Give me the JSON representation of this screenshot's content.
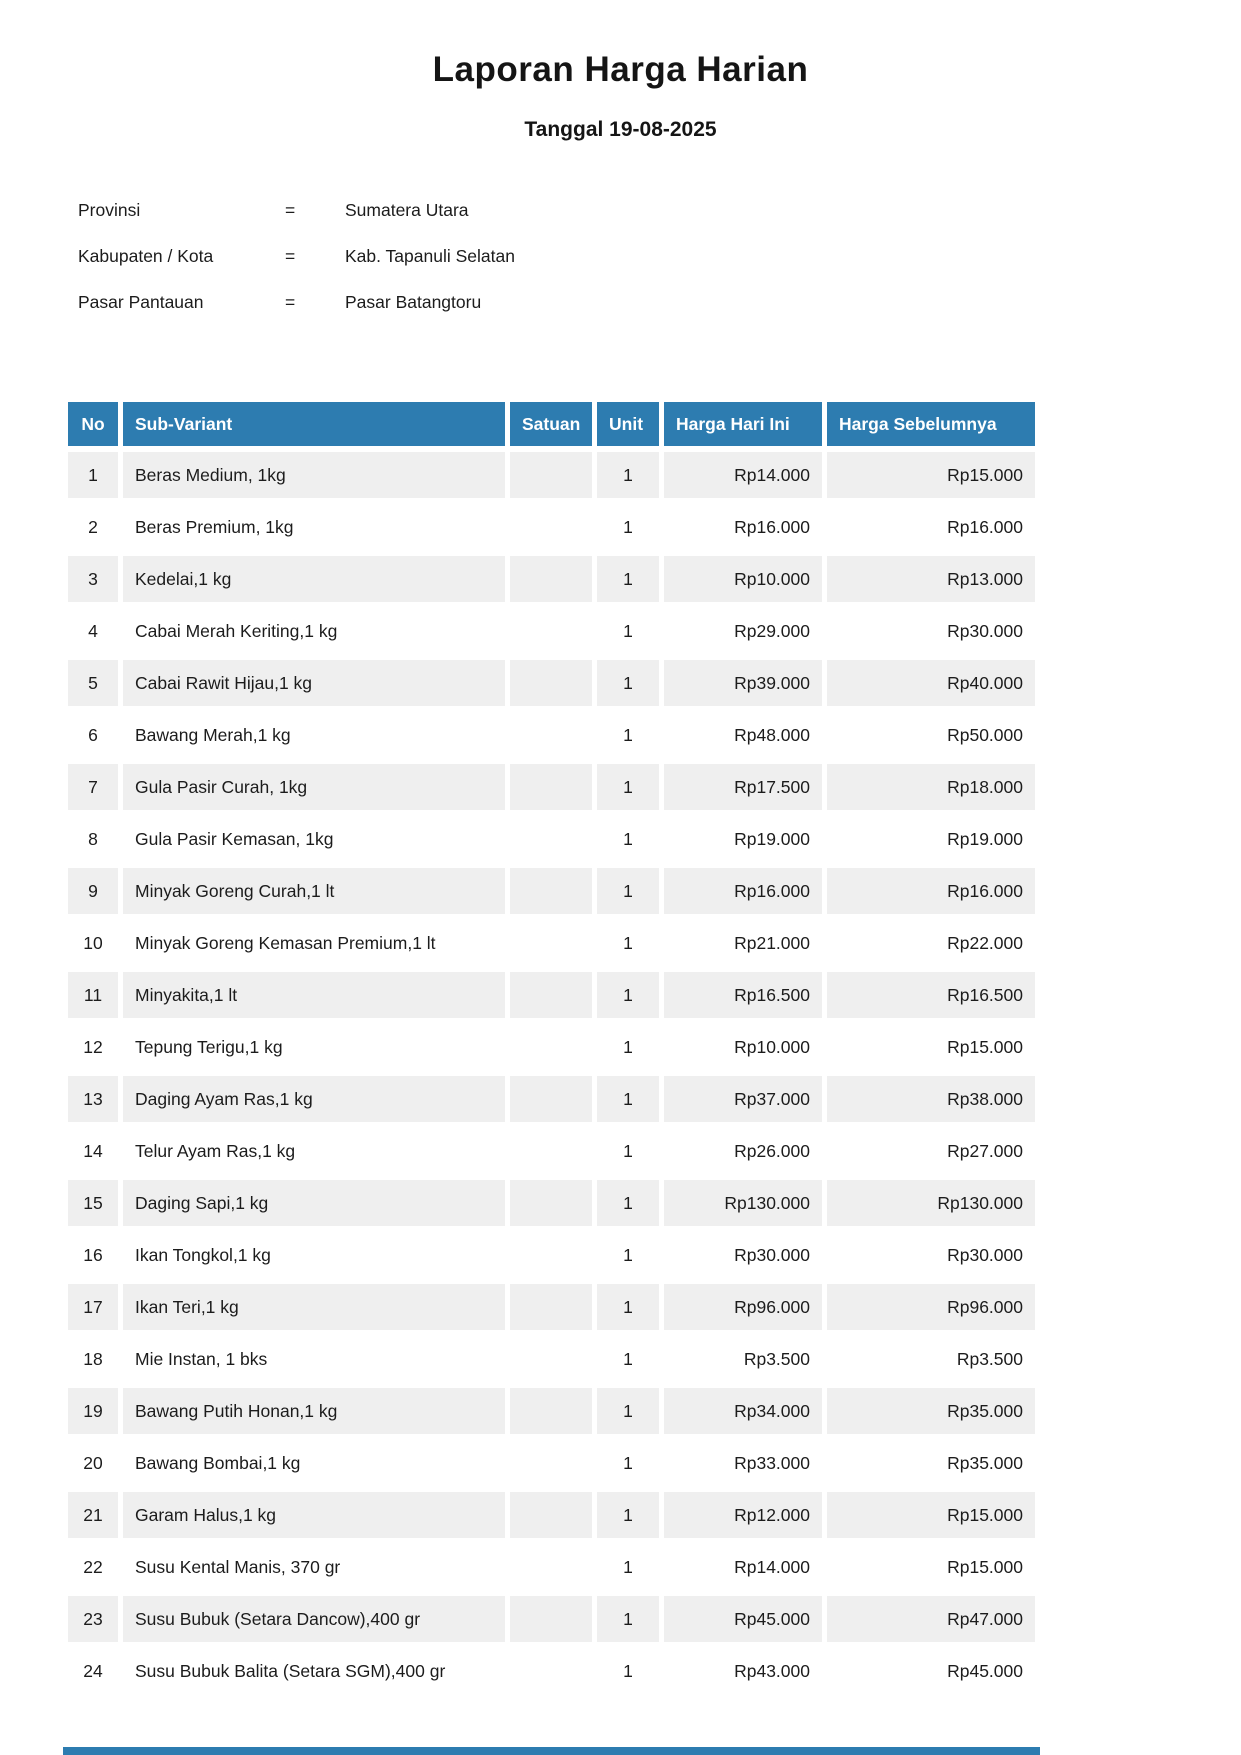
{
  "title": "Laporan Harga Harian",
  "subtitle": "Tanggal 19-08-2025",
  "meta": [
    {
      "label": "Provinsi",
      "eq": "=",
      "value": "Sumatera Utara"
    },
    {
      "label": "Kabupaten / Kota",
      "eq": "=",
      "value": "Kab. Tapanuli Selatan"
    },
    {
      "label": "Pasar Pantauan",
      "eq": "=",
      "value": "Pasar Batangtoru"
    }
  ],
  "table": {
    "headers": [
      "No",
      "Sub-Variant",
      "Satuan",
      "Unit",
      "Harga Hari Ini",
      "Harga Sebelumnya"
    ],
    "rows": [
      {
        "no": "1",
        "sub_variant": "Beras Medium, 1kg",
        "satuan": "",
        "unit": "1",
        "harga_hari_ini": "Rp14.000",
        "harga_sebelumnya": "Rp15.000"
      },
      {
        "no": "2",
        "sub_variant": "Beras Premium, 1kg",
        "satuan": "",
        "unit": "1",
        "harga_hari_ini": "Rp16.000",
        "harga_sebelumnya": "Rp16.000"
      },
      {
        "no": "3",
        "sub_variant": "Kedelai,1 kg",
        "satuan": "",
        "unit": "1",
        "harga_hari_ini": "Rp10.000",
        "harga_sebelumnya": "Rp13.000"
      },
      {
        "no": "4",
        "sub_variant": "Cabai Merah Keriting,1 kg",
        "satuan": "",
        "unit": "1",
        "harga_hari_ini": "Rp29.000",
        "harga_sebelumnya": "Rp30.000"
      },
      {
        "no": "5",
        "sub_variant": "Cabai Rawit Hijau,1 kg",
        "satuan": "",
        "unit": "1",
        "harga_hari_ini": "Rp39.000",
        "harga_sebelumnya": "Rp40.000"
      },
      {
        "no": "6",
        "sub_variant": "Bawang Merah,1 kg",
        "satuan": "",
        "unit": "1",
        "harga_hari_ini": "Rp48.000",
        "harga_sebelumnya": "Rp50.000"
      },
      {
        "no": "7",
        "sub_variant": "Gula Pasir Curah, 1kg",
        "satuan": "",
        "unit": "1",
        "harga_hari_ini": "Rp17.500",
        "harga_sebelumnya": "Rp18.000"
      },
      {
        "no": "8",
        "sub_variant": "Gula Pasir Kemasan, 1kg",
        "satuan": "",
        "unit": "1",
        "harga_hari_ini": "Rp19.000",
        "harga_sebelumnya": "Rp19.000"
      },
      {
        "no": "9",
        "sub_variant": "Minyak Goreng Curah,1 lt",
        "satuan": "",
        "unit": "1",
        "harga_hari_ini": "Rp16.000",
        "harga_sebelumnya": "Rp16.000"
      },
      {
        "no": "10",
        "sub_variant": "Minyak Goreng Kemasan Premium,1 lt",
        "satuan": "",
        "unit": "1",
        "harga_hari_ini": "Rp21.000",
        "harga_sebelumnya": "Rp22.000"
      },
      {
        "no": "11",
        "sub_variant": "Minyakita,1 lt",
        "satuan": "",
        "unit": "1",
        "harga_hari_ini": "Rp16.500",
        "harga_sebelumnya": "Rp16.500"
      },
      {
        "no": "12",
        "sub_variant": "Tepung Terigu,1 kg",
        "satuan": "",
        "unit": "1",
        "harga_hari_ini": "Rp10.000",
        "harga_sebelumnya": "Rp15.000"
      },
      {
        "no": "13",
        "sub_variant": "Daging Ayam Ras,1 kg",
        "satuan": "",
        "unit": "1",
        "harga_hari_ini": "Rp37.000",
        "harga_sebelumnya": "Rp38.000"
      },
      {
        "no": "14",
        "sub_variant": "Telur Ayam Ras,1 kg",
        "satuan": "",
        "unit": "1",
        "harga_hari_ini": "Rp26.000",
        "harga_sebelumnya": "Rp27.000"
      },
      {
        "no": "15",
        "sub_variant": "Daging Sapi,1 kg",
        "satuan": "",
        "unit": "1",
        "harga_hari_ini": "Rp130.000",
        "harga_sebelumnya": "Rp130.000"
      },
      {
        "no": "16",
        "sub_variant": "Ikan Tongkol,1 kg",
        "satuan": "",
        "unit": "1",
        "harga_hari_ini": "Rp30.000",
        "harga_sebelumnya": "Rp30.000"
      },
      {
        "no": "17",
        "sub_variant": "Ikan Teri,1 kg",
        "satuan": "",
        "unit": "1",
        "harga_hari_ini": "Rp96.000",
        "harga_sebelumnya": "Rp96.000"
      },
      {
        "no": "18",
        "sub_variant": "Mie Instan, 1 bks",
        "satuan": "",
        "unit": "1",
        "harga_hari_ini": "Rp3.500",
        "harga_sebelumnya": "Rp3.500"
      },
      {
        "no": "19",
        "sub_variant": "Bawang Putih Honan,1 kg",
        "satuan": "",
        "unit": "1",
        "harga_hari_ini": "Rp34.000",
        "harga_sebelumnya": "Rp35.000"
      },
      {
        "no": "20",
        "sub_variant": "Bawang Bombai,1 kg",
        "satuan": "",
        "unit": "1",
        "harga_hari_ini": "Rp33.000",
        "harga_sebelumnya": "Rp35.000"
      },
      {
        "no": "21",
        "sub_variant": "Garam Halus,1 kg",
        "satuan": "",
        "unit": "1",
        "harga_hari_ini": "Rp12.000",
        "harga_sebelumnya": "Rp15.000"
      },
      {
        "no": "22",
        "sub_variant": "Susu Kental Manis, 370 gr",
        "satuan": "",
        "unit": "1",
        "harga_hari_ini": "Rp14.000",
        "harga_sebelumnya": "Rp15.000"
      },
      {
        "no": "23",
        "sub_variant": "Susu Bubuk (Setara Dancow),400 gr",
        "satuan": "",
        "unit": "1",
        "harga_hari_ini": "Rp45.000",
        "harga_sebelumnya": "Rp47.000"
      },
      {
        "no": "24",
        "sub_variant": "Susu Bubuk Balita (Setara SGM),400 gr",
        "satuan": "",
        "unit": "1",
        "harga_hari_ini": "Rp43.000",
        "harga_sebelumnya": "Rp45.000"
      }
    ]
  },
  "colors": {
    "header_bg": "#2d7cb0",
    "row_alt_bg": "#efefef"
  }
}
